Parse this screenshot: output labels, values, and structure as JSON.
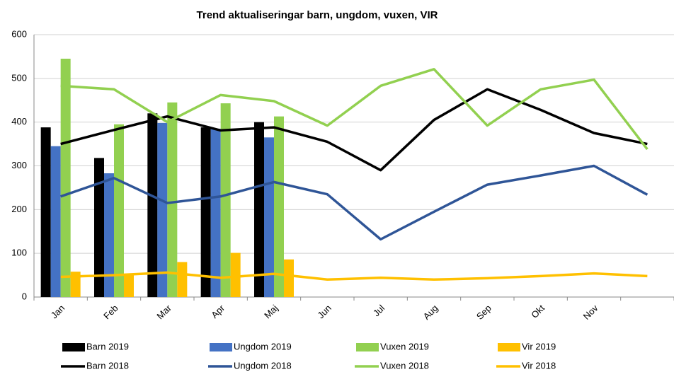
{
  "chart_data": {
    "type": "combo",
    "title": "Trend aktualiseringar barn, ungdom, vuxen, VIR",
    "categories": [
      "Jan",
      "Feb",
      "Mar",
      "Apr",
      "Maj",
      "Jun",
      "Jul",
      "Aug",
      "Sep",
      "Okt",
      "Nov",
      null
    ],
    "ylim": [
      0,
      600
    ],
    "yticks": [
      0,
      100,
      200,
      300,
      400,
      500,
      600
    ],
    "grid": true,
    "series": [
      {
        "name": "Barn 2019",
        "type": "bar",
        "color": "#000000",
        "values": [
          388,
          318,
          420,
          388,
          400,
          null,
          null,
          null,
          null,
          null,
          null,
          null
        ]
      },
      {
        "name": "Ungdom 2019",
        "type": "bar",
        "color": "#4472c4",
        "values": [
          345,
          283,
          398,
          385,
          365,
          null,
          null,
          null,
          null,
          null,
          null,
          null
        ]
      },
      {
        "name": "Vuxen 2019",
        "type": "bar",
        "color": "#92d050",
        "values": [
          545,
          395,
          445,
          443,
          413,
          null,
          null,
          null,
          null,
          null,
          null,
          null
        ]
      },
      {
        "name": "Vir 2019",
        "type": "bar",
        "color": "#ffc000",
        "values": [
          58,
          52,
          80,
          101,
          86,
          null,
          null,
          null,
          null,
          null,
          null,
          null
        ]
      },
      {
        "name": "Barn 2018",
        "type": "line",
        "color": "#000000",
        "values": [
          350,
          382,
          413,
          381,
          388,
          355,
          290,
          405,
          475,
          428,
          375,
          350
        ]
      },
      {
        "name": "Ungdom 2018",
        "type": "line",
        "color": "#2f5597",
        "values": [
          230,
          272,
          215,
          230,
          263,
          235,
          132,
          195,
          257,
          278,
          300,
          234
        ]
      },
      {
        "name": "Vuxen 2018",
        "type": "line",
        "color": "#92d050",
        "values": [
          483,
          475,
          400,
          462,
          448,
          392,
          483,
          521,
          392,
          475,
          497,
          338
        ]
      },
      {
        "name": "Vir 2018",
        "type": "line",
        "color": "#ffc000",
        "values": [
          46,
          50,
          56,
          44,
          53,
          40,
          44,
          40,
          43,
          48,
          54,
          48
        ]
      }
    ]
  }
}
